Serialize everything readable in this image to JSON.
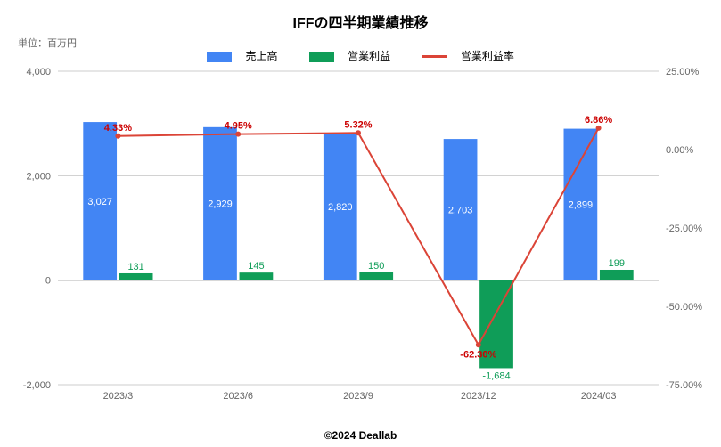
{
  "title": "IFFの四半期業績推移",
  "unit_label": "単位：百万円",
  "copyright": "©2024 Deallab",
  "legend": {
    "series1": "売上高",
    "series2": "営業利益",
    "series3": "営業利益率"
  },
  "chart": {
    "type": "bar+line",
    "categories": [
      "2023/3",
      "2023/6",
      "2023/9",
      "2023/12",
      "2024/03"
    ],
    "left_axis": {
      "min": -2000,
      "max": 4000,
      "ticks": [
        -2000,
        0,
        2000,
        4000
      ],
      "tick_labels": [
        "-2,000",
        "0",
        "2,000",
        "4,000"
      ]
    },
    "right_axis": {
      "min": -75,
      "max": 25,
      "ticks": [
        -75,
        -50,
        -25,
        0,
        25
      ],
      "tick_labels": [
        "-75.00%",
        "-50.00%",
        "-25.00%",
        "0.00%",
        "25.00%"
      ]
    },
    "series_bar1": {
      "name": "売上高",
      "color": "#4285f4",
      "values": [
        3027,
        2929,
        2820,
        2703,
        2899
      ],
      "value_labels": [
        "3,027",
        "2,929",
        "2,820",
        "2,703",
        "2,899"
      ],
      "label_color": "#ffffff"
    },
    "series_bar2": {
      "name": "営業利益",
      "color": "#0f9d58",
      "values": [
        131,
        145,
        150,
        -1684,
        199
      ],
      "value_labels": [
        "131",
        "145",
        "150",
        "-1,684",
        "199"
      ],
      "label_color": "#0f9d58"
    },
    "series_line": {
      "name": "営業利益率",
      "color": "#db4437",
      "values": [
        4.33,
        4.95,
        5.32,
        -62.3,
        6.86
      ],
      "value_labels": [
        "4.33%",
        "4.95%",
        "5.32%",
        "-62.30%",
        "6.86%"
      ]
    },
    "grid_color": "#cccccc",
    "axis_text_color": "#666666",
    "bar_width_ratio": 0.28,
    "bar_gap_ratio": 0.02
  }
}
